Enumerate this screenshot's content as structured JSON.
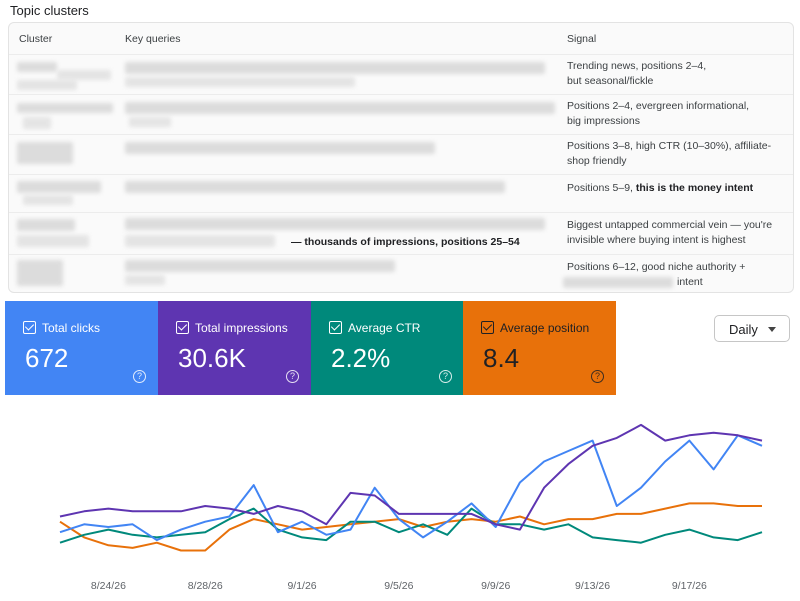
{
  "section_title": "Topic clusters",
  "table": {
    "headers": {
      "cluster": "Cluster",
      "key_queries": "Key queries",
      "signal": "Signal"
    },
    "rows": [
      {
        "signal": [
          "Trending news, positions 2–4,",
          "but seasonal/fickle"
        ]
      },
      {
        "signal": [
          "Positions 2–4, evergreen informational,",
          "big impressions"
        ]
      },
      {
        "signal": [
          "Positions 3–8, high CTR (10–30%), affiliate-",
          "shop friendly"
        ]
      },
      {
        "signal_plain": "Positions 5–9, ",
        "signal_bold": "this is the money intent"
      },
      {
        "kq_visible": "— thousands of impressions, positions 25–54",
        "signal": [
          "Biggest untapped commercial vein — you're",
          "invisible where buying intent is highest"
        ]
      },
      {
        "signal": [
          "Positions 6–12, good niche authority +",
          "intent"
        ]
      }
    ]
  },
  "metrics": [
    {
      "label": "Total clicks",
      "value": "672",
      "color": "#4285f4",
      "text_color": "#ffffff"
    },
    {
      "label": "Total impressions",
      "value": "30.6K",
      "color": "#5e35b1",
      "text_color": "#ffffff"
    },
    {
      "label": "Average CTR",
      "value": "2.2%",
      "color": "#00897b",
      "text_color": "#ffffff"
    },
    {
      "label": "Average position",
      "value": "8.4",
      "color": "#e8710a",
      "text_color": "#202124"
    }
  ],
  "granularity": "Daily",
  "chart_data": {
    "type": "line",
    "x": [
      "8/22/26",
      "8/23/26",
      "8/24/26",
      "8/25/26",
      "8/26/26",
      "8/27/26",
      "8/28/26",
      "8/29/26",
      "8/30/26",
      "8/31/26",
      "9/1/26",
      "9/2/26",
      "9/3/26",
      "9/4/26",
      "9/5/26",
      "9/6/26",
      "9/7/26",
      "9/8/26",
      "9/9/26",
      "9/10/26",
      "9/11/26",
      "9/12/26",
      "9/13/26",
      "9/14/26",
      "9/15/26",
      "9/16/26",
      "9/17/26",
      "9/18/26",
      "9/19/26",
      "9/20/26"
    ],
    "x_ticks": [
      "8/24/26",
      "8/28/26",
      "9/1/26",
      "9/5/26",
      "9/9/26",
      "9/13/26",
      "9/17/26"
    ],
    "series": [
      {
        "name": "Total clicks",
        "color": "#4285f4",
        "values": [
          11,
          14,
          13,
          14,
          8,
          12,
          15,
          17,
          29,
          11,
          15,
          10,
          12,
          28,
          16,
          9,
          15,
          22,
          13,
          30,
          38,
          42,
          46,
          21,
          28,
          38,
          46,
          35,
          48,
          44
        ]
      },
      {
        "name": "Total impressions",
        "color": "#5e35b1",
        "values": [
          17,
          19,
          20,
          19,
          19,
          19,
          21,
          20,
          18,
          21,
          19,
          14,
          26,
          25,
          18,
          18,
          18,
          18,
          14,
          12,
          28,
          37,
          44,
          47,
          52,
          46,
          48,
          49,
          48,
          46
        ]
      },
      {
        "name": "Average CTR",
        "color": "#00897b",
        "values": [
          7,
          10,
          12,
          10,
          9,
          10,
          11,
          16,
          20,
          12,
          9,
          8,
          15,
          15,
          11,
          14,
          10,
          20,
          14,
          14,
          12,
          14,
          9,
          8,
          7,
          10,
          12,
          9,
          8,
          11
        ]
      },
      {
        "name": "Average position",
        "color": "#e8710a",
        "values": [
          15,
          9,
          6,
          5,
          7,
          4,
          4,
          12,
          16,
          14,
          12,
          13,
          14,
          15,
          16,
          13,
          15,
          16,
          15,
          17,
          14,
          16,
          16,
          18,
          18,
          20,
          22,
          22,
          21,
          21
        ]
      }
    ]
  }
}
